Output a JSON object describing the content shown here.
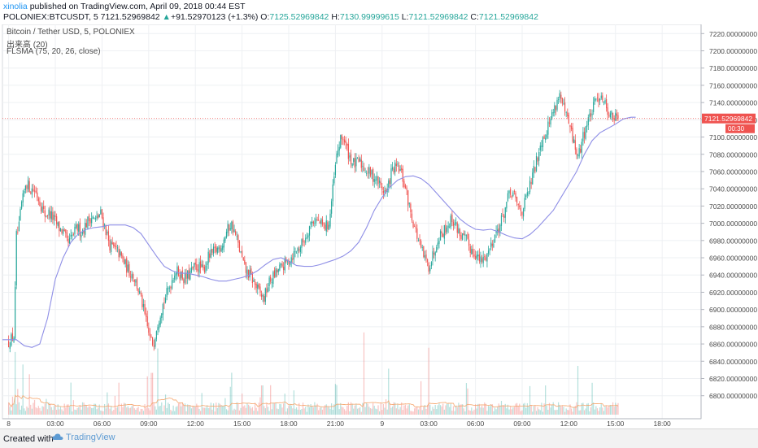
{
  "header": {
    "author": "xinolia",
    "published": "published on TradingView.com, April 09, 2018 00:44 EST",
    "symbol": "POLONIEX:BTCUSDT, 5",
    "last": "7121.52969842",
    "change_arrow": "▲",
    "change": "+91.52970123 (+1.3%)",
    "o_label": "O:",
    "o_value": "7125.52969842",
    "h_label": "H:",
    "h_value": "7130.99999615",
    "l_label": "L:",
    "l_value": "7121.52969842",
    "c_label": "C:",
    "c_value": "7121.52969842"
  },
  "legend": {
    "line1": "Bitcoin / Tether USD, 5, POLONIEX",
    "line2": "出来高 (20)",
    "line3": "FLSMA (75, 20, 26, close)"
  },
  "footer": {
    "created_with": "Created with",
    "brand": "TradingView"
  },
  "colors": {
    "up": "#26a69a",
    "down": "#ef5350",
    "ma": "#8e8ee6",
    "price_line": "#ef5350",
    "grid": "#eef0f3"
  },
  "chart_data": {
    "type": "candlestick",
    "price_label": "7121.52969842",
    "countdown": "00:30",
    "y_ticks": [
      "7220.00000000",
      "7200.00000000",
      "7180.00000000",
      "7160.00000000",
      "7140.00000000",
      "7120.00000000",
      "7100.00000000",
      "7080.00000000",
      "7060.00000000",
      "7040.00000000",
      "7020.00000000",
      "7000.00000000",
      "6980.00000000",
      "6960.00000000",
      "6940.00000000",
      "6920.00000000",
      "6900.00000000",
      "6880.00000000",
      "6860.00000000",
      "6840.00000000",
      "6820.00000000",
      "6800.00000000"
    ],
    "ylim": [
      6795,
      7225
    ],
    "x_ticks": [
      {
        "label": "8",
        "h": 0
      },
      {
        "label": "03:00",
        "h": 3
      },
      {
        "label": "06:00",
        "h": 6
      },
      {
        "label": "09:00",
        "h": 9
      },
      {
        "label": "12:00",
        "h": 12
      },
      {
        "label": "15:00",
        "h": 15
      },
      {
        "label": "18:00",
        "h": 18
      },
      {
        "label": "21:00",
        "h": 21
      },
      {
        "label": "9",
        "h": 24
      },
      {
        "label": "03:00",
        "h": 27
      },
      {
        "label": "06:00",
        "h": 30
      },
      {
        "label": "09:00",
        "h": 33
      },
      {
        "label": "12:00",
        "h": 36
      },
      {
        "label": "15:00",
        "h": 39
      },
      {
        "label": "18:00",
        "h": 42
      }
    ],
    "xlim_hours": [
      -0.4,
      44.5
    ],
    "last_price": 7121.53,
    "close_path": [
      [
        0,
        6862
      ],
      [
        0.2,
        6866
      ],
      [
        0.35,
        6870
      ],
      [
        0.5,
        6985
      ],
      [
        0.65,
        6992
      ],
      [
        0.8,
        7020
      ],
      [
        0.95,
        7030
      ],
      [
        1.1,
        7048
      ],
      [
        1.4,
        7040
      ],
      [
        1.7,
        7038
      ],
      [
        2.0,
        7025
      ],
      [
        2.3,
        7010
      ],
      [
        2.6,
        7012
      ],
      [
        2.9,
        7005
      ],
      [
        3.2,
        6995
      ],
      [
        3.5,
        6990
      ],
      [
        3.8,
        6975
      ],
      [
        4.1,
        6985
      ],
      [
        4.4,
        6995
      ],
      [
        4.7,
        6990
      ],
      [
        5.0,
        7000
      ],
      [
        5.3,
        7008
      ],
      [
        5.6,
        7003
      ],
      [
        5.9,
        7012
      ],
      [
        6.2,
        6995
      ],
      [
        6.5,
        6975
      ],
      [
        6.8,
        6970
      ],
      [
        7.1,
        6965
      ],
      [
        7.4,
        6955
      ],
      [
        7.7,
        6945
      ],
      [
        8.0,
        6940
      ],
      [
        8.3,
        6925
      ],
      [
        8.6,
        6905
      ],
      [
        8.9,
        6880
      ],
      [
        9.1,
        6865
      ],
      [
        9.3,
        6860
      ],
      [
        9.5,
        6880
      ],
      [
        9.8,
        6900
      ],
      [
        10.1,
        6915
      ],
      [
        10.4,
        6930
      ],
      [
        10.7,
        6945
      ],
      [
        11.0,
        6942
      ],
      [
        11.3,
        6935
      ],
      [
        11.6,
        6940
      ],
      [
        11.9,
        6948
      ],
      [
        12.2,
        6950
      ],
      [
        12.5,
        6945
      ],
      [
        12.8,
        6960
      ],
      [
        13.1,
        6965
      ],
      [
        13.4,
        6970
      ],
      [
        13.7,
        6975
      ],
      [
        14.0,
        6990
      ],
      [
        14.3,
        7000
      ],
      [
        14.6,
        6985
      ],
      [
        14.9,
        6965
      ],
      [
        15.2,
        6945
      ],
      [
        15.5,
        6940
      ],
      [
        15.8,
        6930
      ],
      [
        16.1,
        6920
      ],
      [
        16.4,
        6912
      ],
      [
        16.7,
        6930
      ],
      [
        17.0,
        6938
      ],
      [
        17.3,
        6945
      ],
      [
        17.6,
        6950
      ],
      [
        17.9,
        6955
      ],
      [
        18.2,
        6962
      ],
      [
        18.5,
        6968
      ],
      [
        18.8,
        6975
      ],
      [
        19.1,
        6985
      ],
      [
        19.4,
        7000
      ],
      [
        19.7,
        7005
      ],
      [
        20.0,
        7000
      ],
      [
        20.3,
        6995
      ],
      [
        20.6,
        7000
      ],
      [
        20.9,
        7050
      ],
      [
        21.1,
        7080
      ],
      [
        21.3,
        7095
      ],
      [
        21.5,
        7100
      ],
      [
        21.7,
        7088
      ],
      [
        21.9,
        7078
      ],
      [
        22.1,
        7070
      ],
      [
        22.3,
        7068
      ],
      [
        22.5,
        7072
      ],
      [
        22.8,
        7065
      ],
      [
        23.1,
        7060
      ],
      [
        23.4,
        7055
      ],
      [
        23.7,
        7050
      ],
      [
        24.0,
        7040
      ],
      [
        24.3,
        7035
      ],
      [
        24.6,
        7060
      ],
      [
        24.9,
        7065
      ],
      [
        25.2,
        7060
      ],
      [
        25.5,
        7040
      ],
      [
        25.8,
        7015
      ],
      [
        26.1,
        6995
      ],
      [
        26.4,
        6975
      ],
      [
        26.7,
        6960
      ],
      [
        27.0,
        6950
      ],
      [
        27.3,
        6965
      ],
      [
        27.6,
        6985
      ],
      [
        27.9,
        6990
      ],
      [
        28.2,
        6998
      ],
      [
        28.5,
        7005
      ],
      [
        28.8,
        6995
      ],
      [
        29.1,
        6985
      ],
      [
        29.4,
        6980
      ],
      [
        29.7,
        6970
      ],
      [
        30.0,
        6965
      ],
      [
        30.3,
        6955
      ],
      [
        30.6,
        6960
      ],
      [
        30.9,
        6970
      ],
      [
        31.2,
        6985
      ],
      [
        31.5,
        6995
      ],
      [
        31.8,
        7010
      ],
      [
        32.1,
        7030
      ],
      [
        32.4,
        7035
      ],
      [
        32.7,
        7020
      ],
      [
        33.0,
        7015
      ],
      [
        33.3,
        7030
      ],
      [
        33.6,
        7050
      ],
      [
        33.9,
        7070
      ],
      [
        34.2,
        7095
      ],
      [
        34.5,
        7105
      ],
      [
        34.8,
        7120
      ],
      [
        35.1,
        7135
      ],
      [
        35.4,
        7150
      ],
      [
        35.7,
        7130
      ],
      [
        36.0,
        7115
      ],
      [
        36.3,
        7095
      ],
      [
        36.6,
        7075
      ],
      [
        36.9,
        7100
      ],
      [
        37.2,
        7118
      ],
      [
        37.5,
        7130
      ],
      [
        37.8,
        7145
      ],
      [
        38.1,
        7150
      ],
      [
        38.4,
        7135
      ],
      [
        38.7,
        7125
      ],
      [
        39.0,
        7122
      ],
      [
        39.2,
        7121.5
      ]
    ],
    "ma_path": [
      [
        -0.4,
        6865
      ],
      [
        0.5,
        6865
      ],
      [
        1.0,
        6858
      ],
      [
        1.5,
        6856
      ],
      [
        2.0,
        6860
      ],
      [
        2.5,
        6890
      ],
      [
        3.0,
        6935
      ],
      [
        3.5,
        6960
      ],
      [
        4.0,
        6978
      ],
      [
        4.5,
        6988
      ],
      [
        5.0,
        6993
      ],
      [
        5.5,
        6995
      ],
      [
        6.0,
        6996
      ],
      [
        6.5,
        6998
      ],
      [
        7.0,
        6998
      ],
      [
        7.5,
        6998
      ],
      [
        8.0,
        6995
      ],
      [
        8.5,
        6988
      ],
      [
        9.0,
        6975
      ],
      [
        9.5,
        6962
      ],
      [
        10.0,
        6950
      ],
      [
        10.5,
        6945
      ],
      [
        11.0,
        6942
      ],
      [
        11.5,
        6942
      ],
      [
        12.0,
        6940
      ],
      [
        12.5,
        6938
      ],
      [
        13.0,
        6935
      ],
      [
        13.5,
        6933
      ],
      [
        14.0,
        6933
      ],
      [
        14.5,
        6935
      ],
      [
        15.0,
        6937
      ],
      [
        15.5,
        6940
      ],
      [
        16.0,
        6945
      ],
      [
        16.5,
        6952
      ],
      [
        17.0,
        6958
      ],
      [
        17.5,
        6960
      ],
      [
        18.0,
        6956
      ],
      [
        18.5,
        6951
      ],
      [
        19.0,
        6950
      ],
      [
        19.5,
        6950
      ],
      [
        20.0,
        6952
      ],
      [
        20.5,
        6955
      ],
      [
        21.0,
        6958
      ],
      [
        21.5,
        6962
      ],
      [
        22.0,
        6968
      ],
      [
        22.5,
        6978
      ],
      [
        23.0,
        6995
      ],
      [
        23.5,
        7015
      ],
      [
        24.0,
        7030
      ],
      [
        24.5,
        7042
      ],
      [
        25.0,
        7050
      ],
      [
        25.5,
        7054
      ],
      [
        26.0,
        7055
      ],
      [
        26.5,
        7052
      ],
      [
        27.0,
        7045
      ],
      [
        27.5,
        7035
      ],
      [
        28.0,
        7025
      ],
      [
        28.5,
        7015
      ],
      [
        29.0,
        7005
      ],
      [
        29.5,
        6998
      ],
      [
        30.0,
        6993
      ],
      [
        30.5,
        6992
      ],
      [
        31.0,
        6993
      ],
      [
        31.5,
        6990
      ],
      [
        32.0,
        6986
      ],
      [
        32.5,
        6983
      ],
      [
        33.0,
        6982
      ],
      [
        33.5,
        6987
      ],
      [
        34.0,
        6995
      ],
      [
        34.5,
        7005
      ],
      [
        35.0,
        7015
      ],
      [
        35.5,
        7030
      ],
      [
        36.0,
        7045
      ],
      [
        36.5,
        7060
      ],
      [
        37.0,
        7080
      ],
      [
        37.5,
        7096
      ],
      [
        38.0,
        7105
      ],
      [
        38.5,
        7110
      ],
      [
        39.0,
        7115
      ],
      [
        39.5,
        7121
      ],
      [
        40.0,
        7123
      ],
      [
        40.3,
        7123
      ]
    ],
    "volume_ylim": [
      0,
      140
    ],
    "volume_peaks": [
      {
        "h": 0.4,
        "v": 90,
        "up": true
      },
      {
        "h": 0.9,
        "v": 72,
        "up": true
      },
      {
        "h": 1.3,
        "v": 58,
        "up": true
      },
      {
        "h": 4.0,
        "v": 46,
        "up": true
      },
      {
        "h": 8.9,
        "v": 55,
        "up": false
      },
      {
        "h": 9.2,
        "v": 60,
        "up": true
      },
      {
        "h": 9.6,
        "v": 95,
        "up": false
      },
      {
        "h": 14.3,
        "v": 40,
        "up": false
      },
      {
        "h": 16.3,
        "v": 42,
        "up": true
      },
      {
        "h": 21.0,
        "v": 44,
        "up": true
      },
      {
        "h": 22.8,
        "v": 118,
        "up": false
      },
      {
        "h": 24.4,
        "v": 66,
        "up": true
      },
      {
        "h": 26.5,
        "v": 48,
        "up": false
      },
      {
        "h": 27.0,
        "v": 96,
        "up": true
      },
      {
        "h": 34.5,
        "v": 42,
        "up": true
      },
      {
        "h": 36.6,
        "v": 70,
        "up": false
      }
    ]
  }
}
